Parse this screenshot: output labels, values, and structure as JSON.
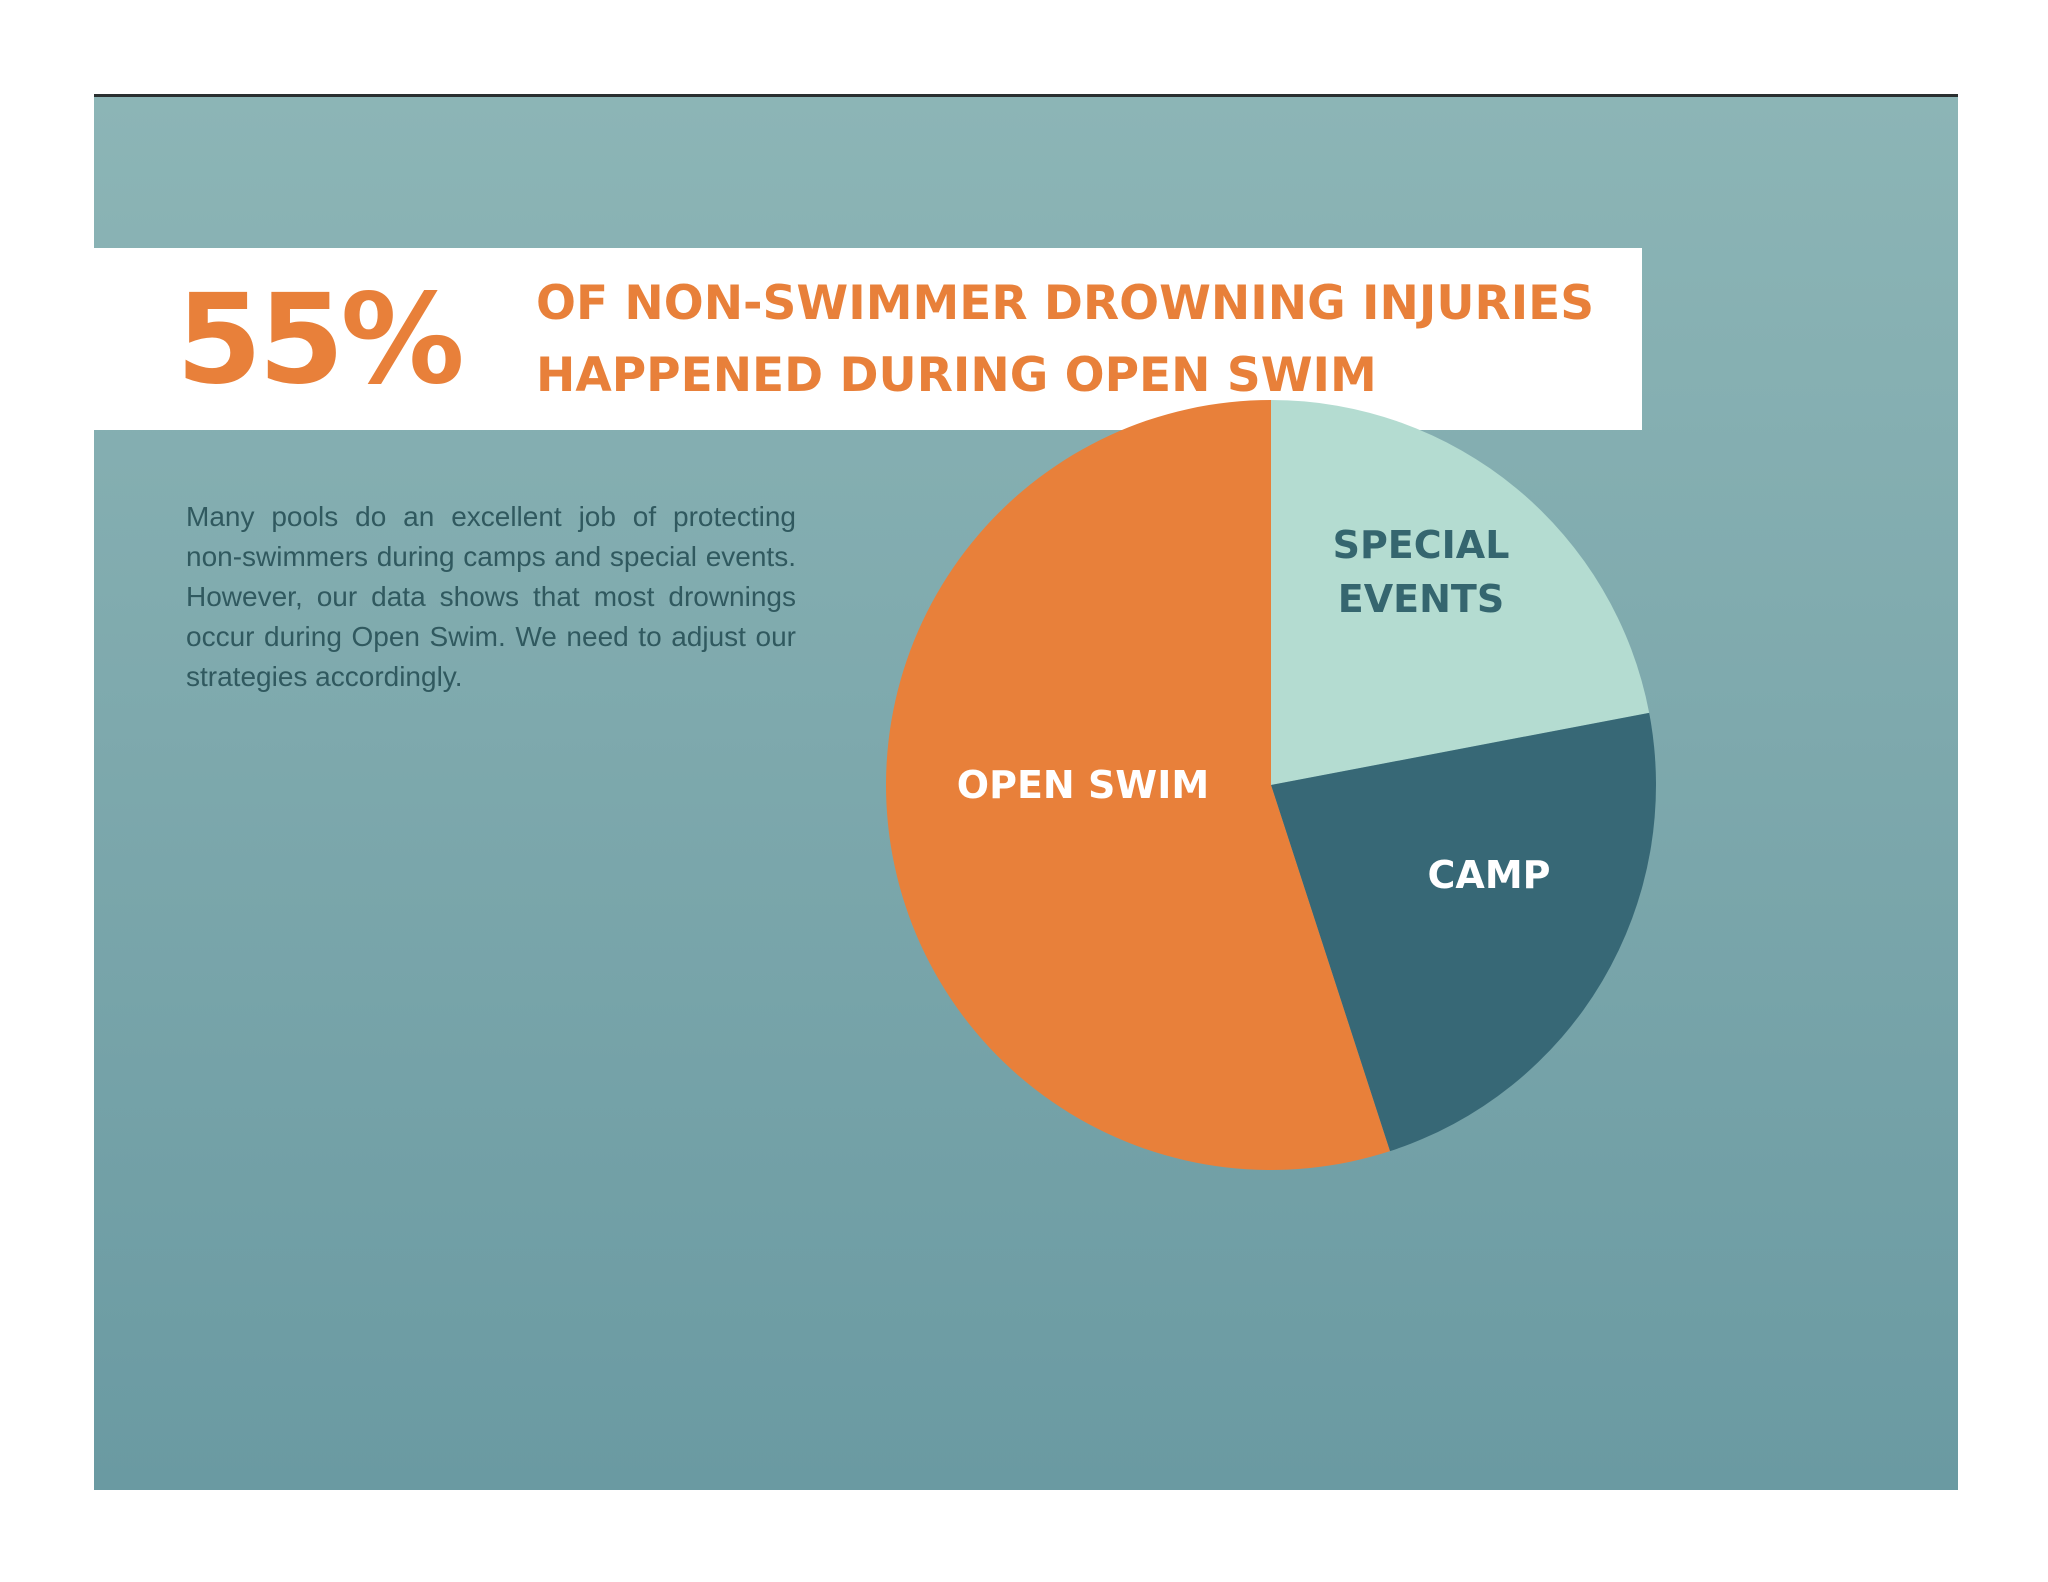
{
  "headline": {
    "stat": "55%",
    "line1": "OF NON-SWIMMER DROWNING INJURIES",
    "line2": "HAPPENED DURING OPEN SWIM"
  },
  "body": {
    "text": "Many pools do an excellent job of protecting non-swimmers during camps and special events. However, our data shows that most drownings occur during Open Swim. We need to adjust our strategies accordingly."
  },
  "colors": {
    "accent_orange": "#e8803a",
    "special_events": "#b4dcd1",
    "camp": "#376876",
    "background": "#7ea9ad"
  },
  "chart_data": {
    "type": "pie",
    "title": "",
    "slices": [
      {
        "label": [
          "SPECIAL",
          "EVENTS"
        ],
        "value": 22,
        "color": "#b4dcd1",
        "label_color": "#35666f"
      },
      {
        "label": [
          "CAMP"
        ],
        "value": 23,
        "color": "#376876",
        "label_color": "#ffffff"
      },
      {
        "label": [
          "OPEN SWIM"
        ],
        "value": 55,
        "color": "#e8803a",
        "label_color": "#ffffff"
      }
    ],
    "start_angle_deg": 0,
    "direction": "clockwise"
  }
}
